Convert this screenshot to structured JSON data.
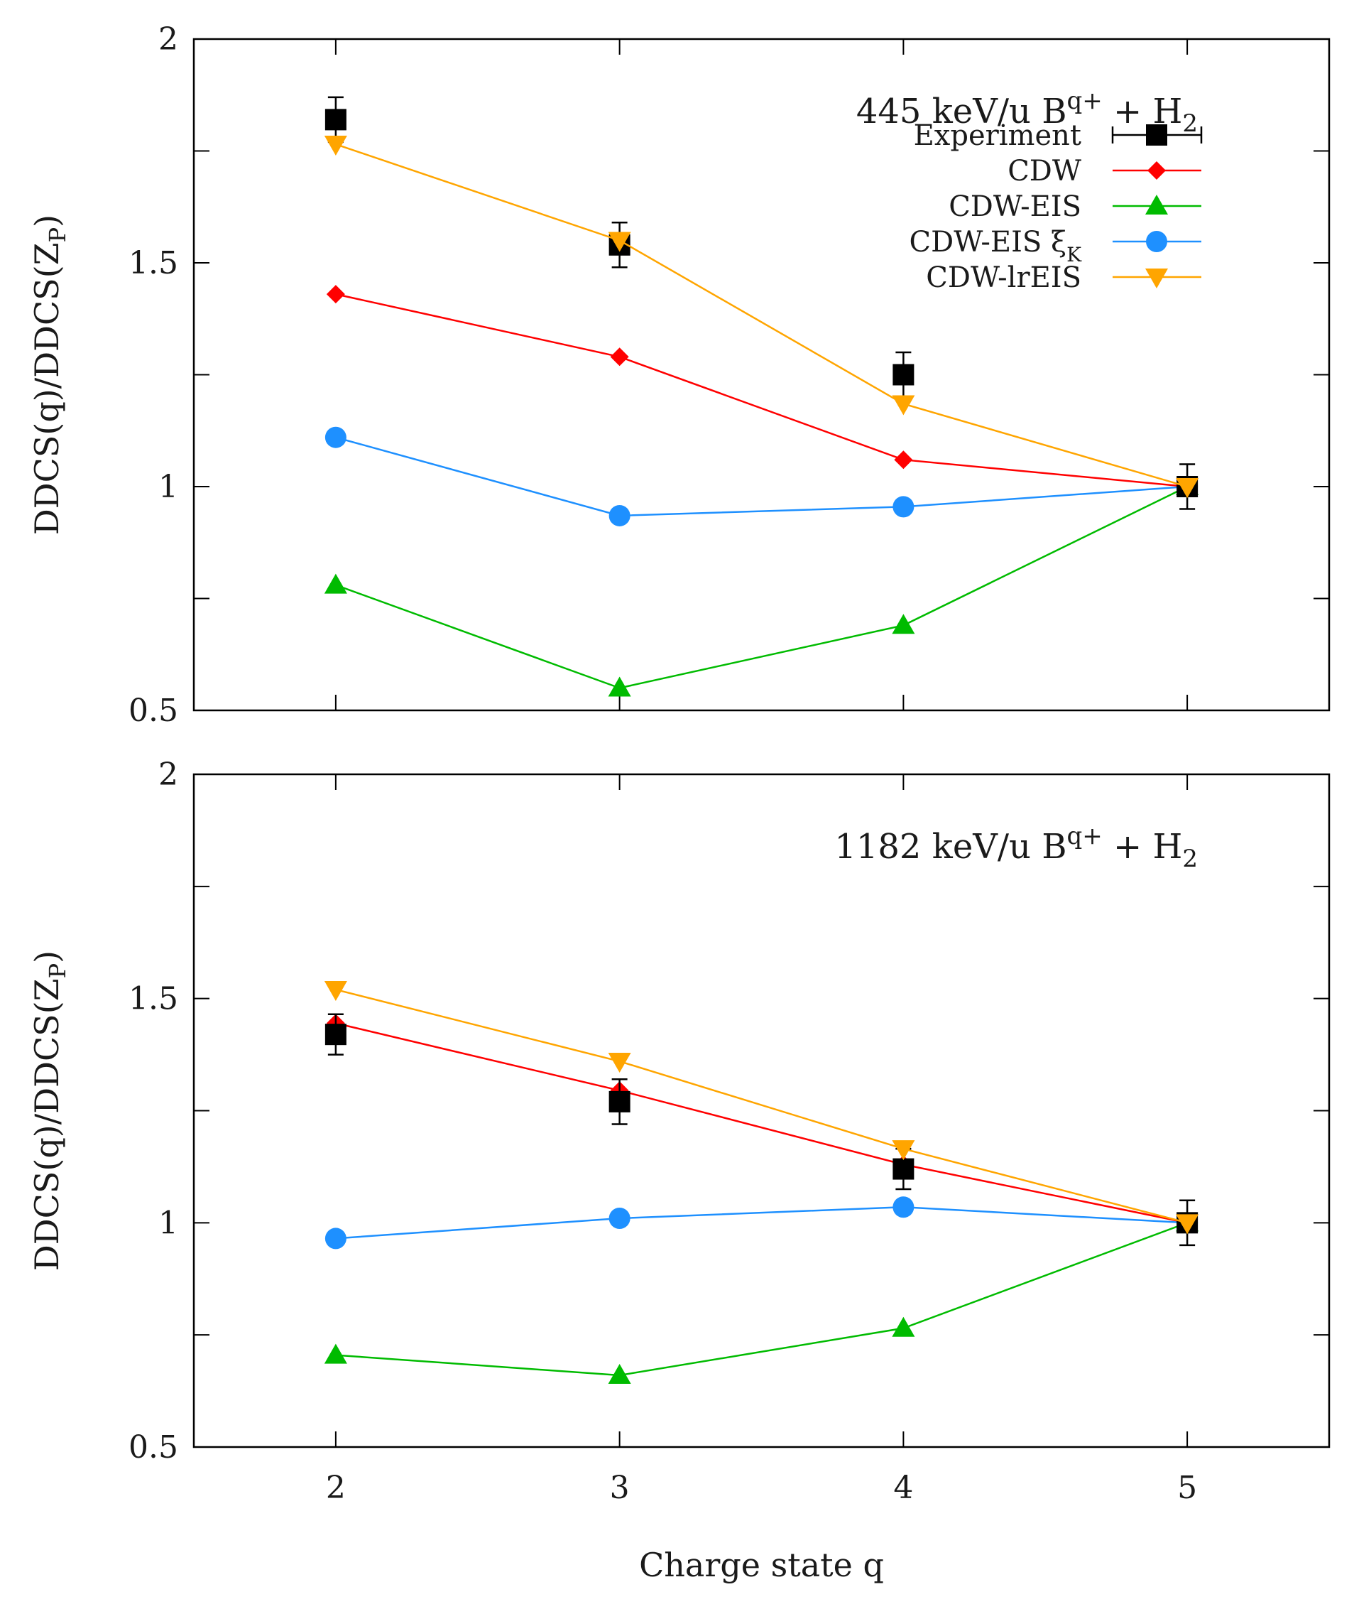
{
  "chart_data": [
    {
      "type": "line",
      "title_main": "445 keV/u B",
      "title_sup": "q+",
      "title_plus": " + H",
      "title_sub": "2",
      "ylabel_main": "DDCS(q)/DDCS(Z",
      "ylabel_sub": "P",
      "ylabel_end": ")",
      "xlabel": "",
      "xlim": [
        1.5,
        5.5
      ],
      "ylim": [
        0.5,
        2
      ],
      "yticks": [
        "0.5",
        "1",
        "1.5",
        "2"
      ],
      "xticks": [],
      "legend_position": "top-right",
      "x": [
        2,
        3,
        4,
        5
      ],
      "series": [
        {
          "name": "Experiment",
          "marker": "square",
          "color": "#000000",
          "values": [
            1.82,
            1.54,
            1.25,
            1.0
          ],
          "errors": [
            0.05,
            0.05,
            0.05,
            0.05
          ]
        },
        {
          "name": "CDW",
          "marker": "diamond",
          "color": "#ff0000",
          "values": [
            1.43,
            1.29,
            1.06,
            1.0
          ]
        },
        {
          "name": "CDW-EIS",
          "marker": "triangle-up",
          "color": "#00bb00",
          "values": [
            0.78,
            0.55,
            0.69,
            1.0
          ]
        },
        {
          "name": "CDW-EIS ξ",
          "name_sub": "K",
          "marker": "circle",
          "color": "#1e90ff",
          "values": [
            1.11,
            0.935,
            0.955,
            1.0
          ]
        },
        {
          "name": "CDW-lrEIS",
          "marker": "triangle-down",
          "color": "#ffa500",
          "values": [
            1.765,
            1.55,
            1.185,
            1.0
          ]
        }
      ]
    },
    {
      "type": "line",
      "title_main": "1182 keV/u B",
      "title_sup": "q+",
      "title_plus": " + H",
      "title_sub": "2",
      "ylabel_main": "DDCS(q)/DDCS(Z",
      "ylabel_sub": "P",
      "ylabel_end": ")",
      "xlabel": "Charge state q",
      "xlim": [
        1.5,
        5.5
      ],
      "ylim": [
        0.5,
        2
      ],
      "yticks": [
        "0.5",
        "1",
        "1.5",
        "2"
      ],
      "xticks": [
        "2",
        "3",
        "4",
        "5"
      ],
      "legend_position": "none",
      "x": [
        2,
        3,
        4,
        5
      ],
      "series": [
        {
          "name": "Experiment",
          "marker": "square",
          "color": "#000000",
          "values": [
            1.42,
            1.27,
            1.12,
            1.0
          ],
          "errors": [
            0.045,
            0.05,
            0.045,
            0.05
          ]
        },
        {
          "name": "CDW",
          "marker": "diamond",
          "color": "#ff0000",
          "values": [
            1.445,
            1.295,
            1.13,
            1.0
          ]
        },
        {
          "name": "CDW-EIS",
          "marker": "triangle-up",
          "color": "#00bb00",
          "values": [
            0.705,
            0.66,
            0.765,
            1.0
          ]
        },
        {
          "name": "CDW-EIS ξ",
          "name_sub": "K",
          "marker": "circle",
          "color": "#1e90ff",
          "values": [
            0.965,
            1.01,
            1.035,
            1.0
          ]
        },
        {
          "name": "CDW-lrEIS",
          "marker": "triangle-down",
          "color": "#ffa500",
          "values": [
            1.52,
            1.36,
            1.165,
            1.0
          ]
        }
      ]
    }
  ]
}
